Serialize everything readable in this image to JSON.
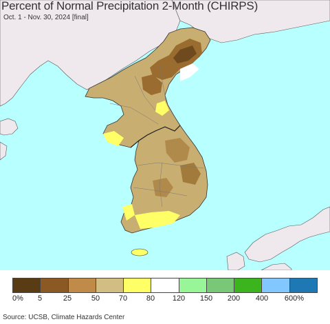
{
  "title": "Percent of Normal Precipitation 2-Month (CHIRPS)",
  "subtitle": "Oct. 1 - Nov. 30, 2024 [final]",
  "source": "Source: UCSB, Climate Hazards Center",
  "legend": {
    "colors": [
      "#5a3c14",
      "#8b5a24",
      "#c08a48",
      "#d2bd82",
      "#ffff66",
      "#ffffff",
      "#98f598",
      "#78c878",
      "#3cb41e",
      "#82c8ff",
      "#1e78b4"
    ],
    "tick_labels": [
      "0%",
      "5",
      "25",
      "50",
      "70",
      "80",
      "120",
      "150",
      "200",
      "400",
      "600%"
    ]
  },
  "map_colors": {
    "sea": "#b8ffff",
    "neighbor_land": "#efe9ee",
    "korea_base": "#c9ae72",
    "dry": "#9a6c30",
    "very_dry": "#6e4a1e",
    "near_normal": "#ffff66",
    "normal": "#ffffff",
    "border": "#333333"
  }
}
